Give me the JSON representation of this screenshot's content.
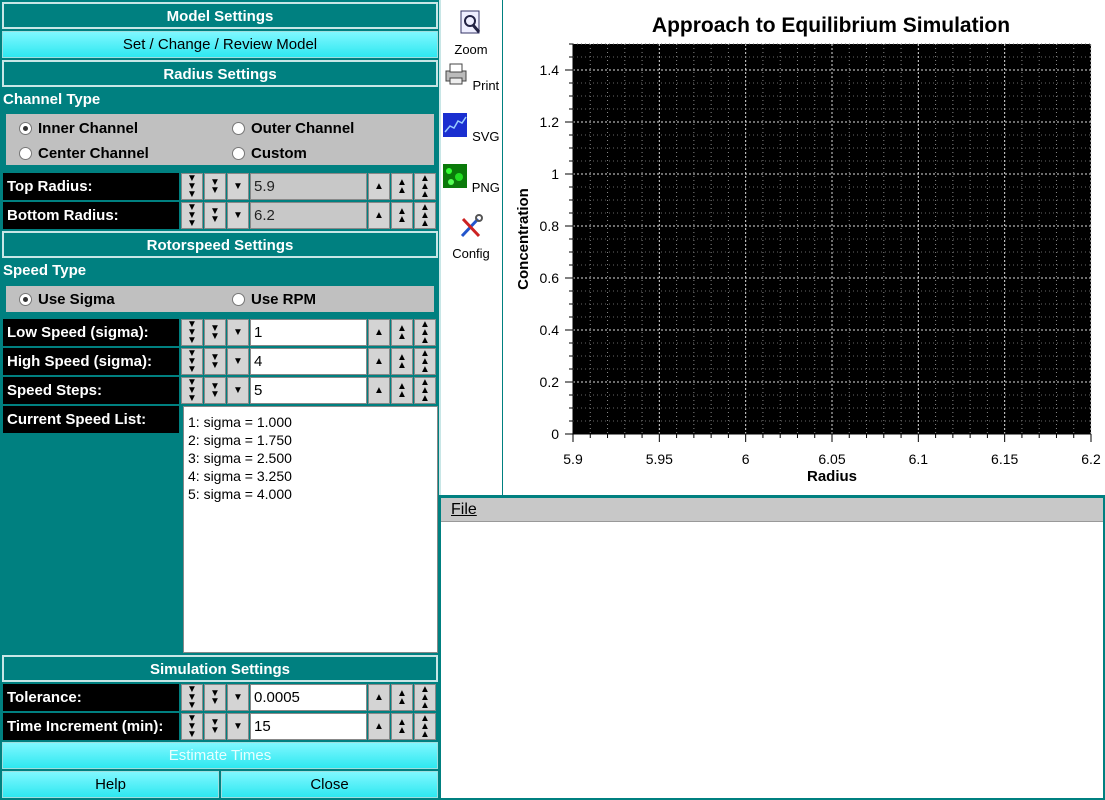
{
  "left": {
    "model_settings": "Model Settings",
    "set_model": "Set / Change / Review Model",
    "radius_settings": "Radius Settings",
    "channel_type": "Channel Type",
    "channels": {
      "inner": "Inner Channel",
      "outer": "Outer Channel",
      "center": "Center Channel",
      "custom": "Custom"
    },
    "top_radius": {
      "label": "Top Radius:",
      "value": "5.9"
    },
    "bottom_radius": {
      "label": "Bottom Radius:",
      "value": "6.2"
    },
    "rotorspeed_settings": "Rotorspeed Settings",
    "speed_type": "Speed Type",
    "speed_types": {
      "sigma": "Use Sigma",
      "rpm": "Use RPM"
    },
    "low_speed": {
      "label": "Low Speed (sigma):",
      "value": "1"
    },
    "high_speed": {
      "label": "High Speed (sigma):",
      "value": "4"
    },
    "speed_steps": {
      "label": "Speed Steps:",
      "value": "5"
    },
    "current_speed_list": "Current Speed List:",
    "speed_list": [
      "1: sigma = 1.000",
      "2: sigma = 1.750",
      "3: sigma = 2.500",
      "4: sigma = 3.250",
      "5: sigma = 4.000"
    ],
    "simulation_settings": "Simulation Settings",
    "tolerance": {
      "label": "Tolerance:",
      "value": "0.0005"
    },
    "time_increment": {
      "label": "Time Increment (min):",
      "value": "15"
    },
    "estimate_times": "Estimate Times",
    "help": "Help",
    "close": "Close"
  },
  "toolbar": {
    "zoom": "Zoom",
    "print": "Print",
    "svg": "SVG",
    "png": "PNG",
    "config": "Config"
  },
  "menu": {
    "file": "File"
  },
  "chart_data": {
    "type": "line",
    "title": "Approach to Equilibrium Simulation",
    "xlabel": "Radius",
    "ylabel": "Concentration",
    "xlim": [
      5.9,
      6.2
    ],
    "ylim": [
      0,
      1.5
    ],
    "xticks": [
      "5.9",
      "5.95",
      "6",
      "6.05",
      "6.1",
      "6.15",
      "6.2"
    ],
    "yticks": [
      "0",
      "0.2",
      "0.4",
      "0.6",
      "0.8",
      "1",
      "1.2",
      "1.4"
    ],
    "series": [],
    "grid": true
  }
}
